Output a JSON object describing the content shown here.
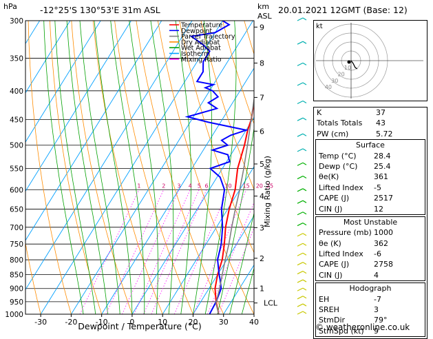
{
  "header": {
    "left_unit": "hPa",
    "location": "-12°25'S  130°53'E  31m  ASL",
    "km_unit": "km",
    "asl_unit": "ASL",
    "datetime": "20.01.2021  12GMT  (Base: 12)"
  },
  "chart_data": {
    "type": "line",
    "title": "-12°25'S  130°53'E  31m  ASL",
    "xlabel": "Dewpoint / Temperature (°C)",
    "ylabel": "hPa",
    "y2label": "Mixing Ratio (g/kg)",
    "xlim": [
      -35,
      40
    ],
    "ylim": [
      1000,
      300
    ],
    "x_ticks": [
      -30,
      -20,
      -10,
      0,
      10,
      20,
      30,
      40
    ],
    "pressure_ticks": [
      300,
      350,
      400,
      450,
      500,
      550,
      600,
      650,
      700,
      750,
      800,
      850,
      900,
      950,
      1000
    ],
    "km_ticks": [
      {
        "label": "9",
        "p": 308
      },
      {
        "label": "8",
        "p": 357
      },
      {
        "label": "7",
        "p": 411
      },
      {
        "label": "6",
        "p": 472
      },
      {
        "label": "5",
        "p": 540
      },
      {
        "label": "4",
        "p": 616
      },
      {
        "label": "3",
        "p": 701
      },
      {
        "label": "2",
        "p": 795
      },
      {
        "label": "1",
        "p": 899
      }
    ],
    "lcl_label": "LCL",
    "lcl_p": 955,
    "mixing_ratio_labels": [
      "1",
      "2",
      "3",
      "4",
      "5",
      "6",
      "10",
      "15",
      "20",
      "25"
    ],
    "legend": [
      {
        "name": "Temperature",
        "color": "#ff0000"
      },
      {
        "name": "Dewpoint",
        "color": "#0000ff"
      },
      {
        "name": "Parcel Trajectory",
        "color": "#808080"
      },
      {
        "name": "Dry Adiabat",
        "color": "#ff8c00"
      },
      {
        "name": "Wet Adiabat",
        "color": "#00a000"
      },
      {
        "name": "Isotherm",
        "color": "#00a0ff"
      },
      {
        "name": "Mixing Ratio",
        "color": "#ff00ff"
      }
    ],
    "series": [
      {
        "name": "Temperature",
        "color": "#ff0000",
        "points": [
          [
            1000,
            28.4
          ],
          [
            950,
            25
          ],
          [
            900,
            22
          ],
          [
            850,
            20
          ],
          [
            800,
            18.5
          ],
          [
            750,
            16
          ],
          [
            700,
            13
          ],
          [
            650,
            10.5
          ],
          [
            600,
            8.5
          ],
          [
            550,
            5
          ],
          [
            500,
            2.5
          ],
          [
            470,
            0.5
          ],
          [
            450,
            -0.5
          ],
          [
            420,
            -3
          ],
          [
            390,
            -5
          ],
          [
            370,
            -6.5
          ]
        ]
      },
      {
        "name": "Dewpoint",
        "color": "#0000ff",
        "points": [
          [
            1000,
            25.4
          ],
          [
            950,
            25
          ],
          [
            900,
            24
          ],
          [
            870,
            22
          ],
          [
            850,
            20.5
          ],
          [
            800,
            17
          ],
          [
            750,
            15
          ],
          [
            700,
            12
          ],
          [
            650,
            8
          ],
          [
            600,
            5
          ],
          [
            570,
            1
          ],
          [
            550,
            -4
          ],
          [
            535,
            1
          ],
          [
            520,
            -1
          ],
          [
            510,
            -7
          ],
          [
            500,
            -3
          ],
          [
            490,
            -6
          ],
          [
            480,
            -4
          ],
          [
            470,
            0
          ],
          [
            455,
            -14
          ],
          [
            445,
            -22
          ],
          [
            430,
            -14
          ],
          [
            420,
            -18
          ],
          [
            410,
            -16
          ],
          [
            400,
            -19
          ],
          [
            395,
            -22
          ],
          [
            390,
            -20
          ],
          [
            385,
            -26
          ],
          [
            370,
            -26
          ],
          [
            355,
            -28
          ],
          [
            340,
            -28
          ],
          [
            330,
            -32
          ],
          [
            320,
            -37
          ],
          [
            315,
            -30
          ],
          [
            305,
            -27
          ],
          [
            300,
            -30
          ]
        ]
      },
      {
        "name": "Parcel Trajectory",
        "color": "#808080",
        "points": [
          [
            1000,
            28.4
          ],
          [
            955,
            25.2
          ],
          [
            900,
            23.5
          ],
          [
            850,
            21.5
          ],
          [
            800,
            19.5
          ],
          [
            750,
            17.5
          ],
          [
            700,
            15
          ],
          [
            650,
            12.5
          ],
          [
            600,
            10
          ],
          [
            550,
            7
          ],
          [
            500,
            3.5
          ],
          [
            450,
            -0.5
          ],
          [
            400,
            -5
          ],
          [
            370,
            -8
          ]
        ]
      }
    ],
    "wind_barbs_count": 24,
    "hodograph": {
      "label": "kt",
      "ring_labels": [
        "10",
        "20",
        "30",
        "40"
      ]
    }
  },
  "indices": {
    "rows": [
      {
        "label": "K",
        "value": "37"
      },
      {
        "label": "Totals Totals",
        "value": "43"
      },
      {
        "label": "PW (cm)",
        "value": "5.72"
      }
    ],
    "surface_title": "Surface",
    "surface": [
      {
        "label": "Temp (°C)",
        "value": "28.4"
      },
      {
        "label": "Dewp (°C)",
        "value": "25.4"
      },
      {
        "label": "θe(K)",
        "value": "361"
      },
      {
        "label": "Lifted Index",
        "value": "-5"
      },
      {
        "label": "CAPE (J)",
        "value": "2517"
      },
      {
        "label": "CIN (J)",
        "value": "12"
      }
    ],
    "mu_title": "Most Unstable",
    "mu": [
      {
        "label": "Pressure (mb)",
        "value": "1000"
      },
      {
        "label": "θe (K)",
        "value": "362"
      },
      {
        "label": "Lifted Index",
        "value": "-6"
      },
      {
        "label": "CAPE (J)",
        "value": "2758"
      },
      {
        "label": "CIN (J)",
        "value": "4"
      }
    ],
    "hodo_title": "Hodograph",
    "hodo": [
      {
        "label": "EH",
        "value": "-7"
      },
      {
        "label": "SREH",
        "value": "3"
      },
      {
        "label": "StmDir",
        "value": "79°"
      },
      {
        "label": "StmSpd (kt)",
        "value": "9"
      }
    ]
  },
  "credit": "© weatheronline.co.uk"
}
